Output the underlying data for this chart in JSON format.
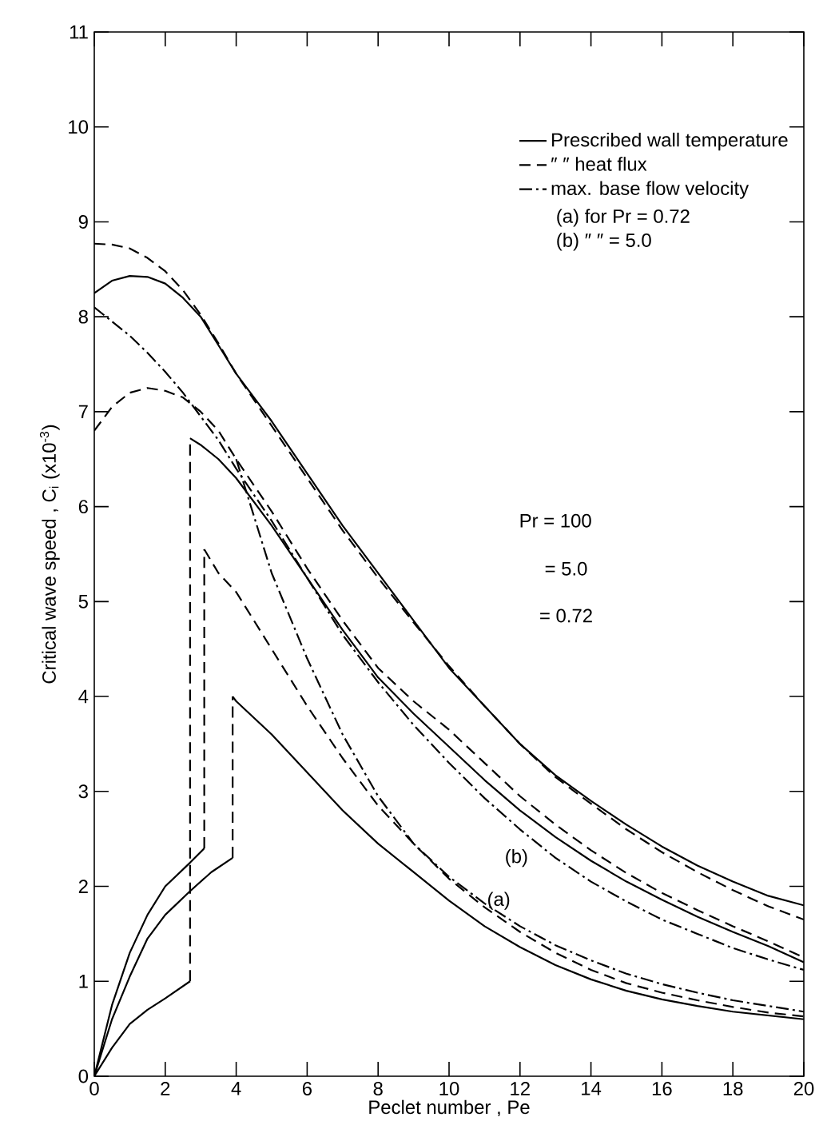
{
  "chart_data": {
    "type": "line",
    "xlabel": "Peclet number , Pe",
    "ylabel": "Critical wave speed , C$_{i}$ (x10$^{-3}$)",
    "xlim": [
      0,
      20
    ],
    "ylim": [
      0,
      11
    ],
    "xticks": [
      0,
      2,
      4,
      6,
      8,
      10,
      12,
      14,
      16,
      18,
      20
    ],
    "yticks": [
      0,
      1,
      2,
      3,
      4,
      5,
      6,
      7,
      8,
      9,
      10,
      11
    ],
    "legend": "top right",
    "grid": false,
    "series": [
      {
        "name": "Prescribed wall temperature",
        "line_style": "solid",
        "color": "#000000",
        "x": [
          0,
          0.5,
          1,
          1.5,
          2,
          2.5,
          3,
          3.5,
          4,
          5,
          6,
          7,
          8,
          9,
          10,
          11,
          12,
          13,
          14,
          15,
          16,
          17,
          18,
          19,
          20
        ],
        "values": [
          8.25,
          8.38,
          8.43,
          8.42,
          8.35,
          8.2,
          8.0,
          7.7,
          7.4,
          6.9,
          6.35,
          5.8,
          5.3,
          4.8,
          4.3,
          3.9,
          3.5,
          3.17,
          2.9,
          2.65,
          2.42,
          2.22,
          2.05,
          1.9,
          1.8
        ]
      },
      {
        "name": "″ ″ heat flux",
        "type": "line",
        "line_style": "dashed",
        "color": "#000000",
        "x": [
          0,
          0.5,
          1,
          1.5,
          2,
          2.5,
          3,
          3.5,
          4,
          5,
          6,
          7,
          8,
          9,
          10,
          11,
          12,
          13,
          14,
          15,
          16,
          17,
          18,
          19,
          20
        ],
        "values": [
          8.77,
          8.76,
          8.72,
          8.62,
          8.48,
          8.28,
          8.02,
          7.72,
          7.4,
          6.85,
          6.3,
          5.75,
          5.25,
          4.78,
          4.32,
          3.9,
          3.5,
          3.15,
          2.87,
          2.6,
          2.36,
          2.15,
          1.96,
          1.79,
          1.65
        ]
      },
      {
        "name": "max. base flow velocity",
        "type": "line",
        "line_style": "dashdot",
        "color": "#000000",
        "x": [
          0,
          0.5,
          1,
          1.5,
          2,
          2.5,
          3,
          3.5,
          4,
          5,
          6,
          7,
          8,
          9,
          10,
          11,
          12,
          13,
          14,
          15,
          16,
          17,
          18,
          19,
          20
        ],
        "values": [
          8.1,
          7.95,
          7.8,
          7.62,
          7.42,
          7.2,
          6.95,
          6.7,
          6.4,
          5.85,
          5.25,
          4.65,
          4.15,
          3.7,
          3.3,
          2.93,
          2.6,
          2.3,
          2.05,
          1.84,
          1.65,
          1.5,
          1.35,
          1.23,
          1.12
        ]
      },
      {
        "type": "line",
        "line_style": "dashed",
        "color": "#000000",
        "x": [
          0,
          0.5,
          1,
          1.5,
          2,
          2.5,
          3,
          3.5,
          4,
          5,
          6,
          7,
          8,
          9,
          10,
          11,
          12,
          13,
          14,
          15,
          16,
          17,
          18,
          19,
          20
        ],
        "values": [
          6.8,
          7.05,
          7.2,
          7.25,
          7.22,
          7.15,
          7.0,
          6.8,
          6.5,
          5.95,
          5.35,
          4.8,
          4.3,
          3.95,
          3.65,
          3.3,
          2.95,
          2.65,
          2.38,
          2.14,
          1.93,
          1.75,
          1.58,
          1.42,
          1.25
        ]
      },
      {
        "type": "line",
        "line_style": "solid",
        "color": "#000000",
        "x": [
          2.7,
          3,
          3.5,
          4,
          5,
          6,
          7,
          8,
          9,
          10,
          11,
          12,
          13,
          14,
          15,
          16,
          17,
          18,
          19,
          20
        ],
        "values": [
          6.72,
          6.65,
          6.5,
          6.3,
          5.8,
          5.25,
          4.7,
          4.2,
          3.82,
          3.47,
          3.12,
          2.8,
          2.52,
          2.27,
          2.05,
          1.86,
          1.68,
          1.52,
          1.37,
          1.2
        ]
      },
      {
        "type": "line",
        "line_style": "dashed",
        "color": "#000000",
        "x": [
          3.1,
          3.5,
          4,
          5,
          6,
          7,
          8,
          9,
          10,
          11,
          12,
          13,
          14,
          15,
          16,
          17,
          18,
          19,
          20
        ],
        "values": [
          5.55,
          5.3,
          5.1,
          4.5,
          3.9,
          3.35,
          2.85,
          2.45,
          2.08,
          1.78,
          1.52,
          1.3,
          1.12,
          0.98,
          0.88,
          0.8,
          0.73,
          0.67,
          0.63
        ]
      },
      {
        "type": "line",
        "line_style": "solid",
        "color": "#000000",
        "x": [
          3.9,
          4,
          5,
          6,
          7,
          8,
          9,
          10,
          11,
          12,
          13,
          14,
          15,
          16,
          17,
          18,
          19,
          20
        ],
        "values": [
          4.0,
          3.95,
          3.6,
          3.2,
          2.8,
          2.45,
          2.15,
          1.85,
          1.58,
          1.36,
          1.17,
          1.02,
          0.9,
          0.81,
          0.74,
          0.68,
          0.64,
          0.6
        ]
      },
      {
        "type": "line",
        "line_style": "dashdot",
        "color": "#000000",
        "x": [
          4,
          4.5,
          5,
          6,
          7,
          8,
          9,
          10,
          11,
          12,
          13,
          14,
          15,
          16,
          17,
          18,
          19,
          20
        ],
        "values": [
          6.5,
          5.9,
          5.3,
          4.4,
          3.6,
          2.95,
          2.45,
          2.1,
          1.82,
          1.58,
          1.38,
          1.22,
          1.08,
          0.97,
          0.88,
          0.8,
          0.74,
          0.68
        ]
      },
      {
        "type": "line",
        "line_style": "solid",
        "color": "#000000",
        "x": [
          0,
          0.5,
          1,
          1.5,
          2,
          2.7
        ],
        "values": [
          0,
          0.3,
          0.55,
          0.7,
          0.82,
          1.0
        ]
      },
      {
        "type": "line",
        "line_style": "solid",
        "color": "#000000",
        "x": [
          0,
          0.5,
          1,
          1.5,
          2,
          2.7,
          3.1
        ],
        "values": [
          0,
          0.75,
          1.3,
          1.7,
          2.0,
          2.25,
          2.4
        ]
      },
      {
        "type": "line",
        "line_style": "solid",
        "color": "#000000",
        "x": [
          0,
          0.5,
          1,
          1.5,
          2,
          2.7,
          3.3,
          3.9
        ],
        "values": [
          0,
          0.6,
          1.05,
          1.45,
          1.7,
          1.95,
          2.15,
          2.3
        ]
      },
      {
        "type": "line",
        "line_style": "dashed",
        "color": "#000000",
        "x": [
          2.7,
          2.7
        ],
        "values": [
          1.0,
          6.72
        ]
      },
      {
        "type": "line",
        "line_style": "dashed",
        "color": "#000000",
        "x": [
          3.1,
          3.1
        ],
        "values": [
          2.4,
          5.55
        ]
      },
      {
        "type": "line",
        "line_style": "dashed",
        "color": "#000000",
        "x": [
          3.9,
          3.9
        ],
        "values": [
          2.3,
          4.0
        ]
      }
    ],
    "annotations": [
      "(a) for Pr = 0.72",
      "(b) ″ ″ = 5.0",
      "Pr = 100",
      "= 5.0",
      "= 0.72",
      "(b)",
      "(a)"
    ]
  }
}
